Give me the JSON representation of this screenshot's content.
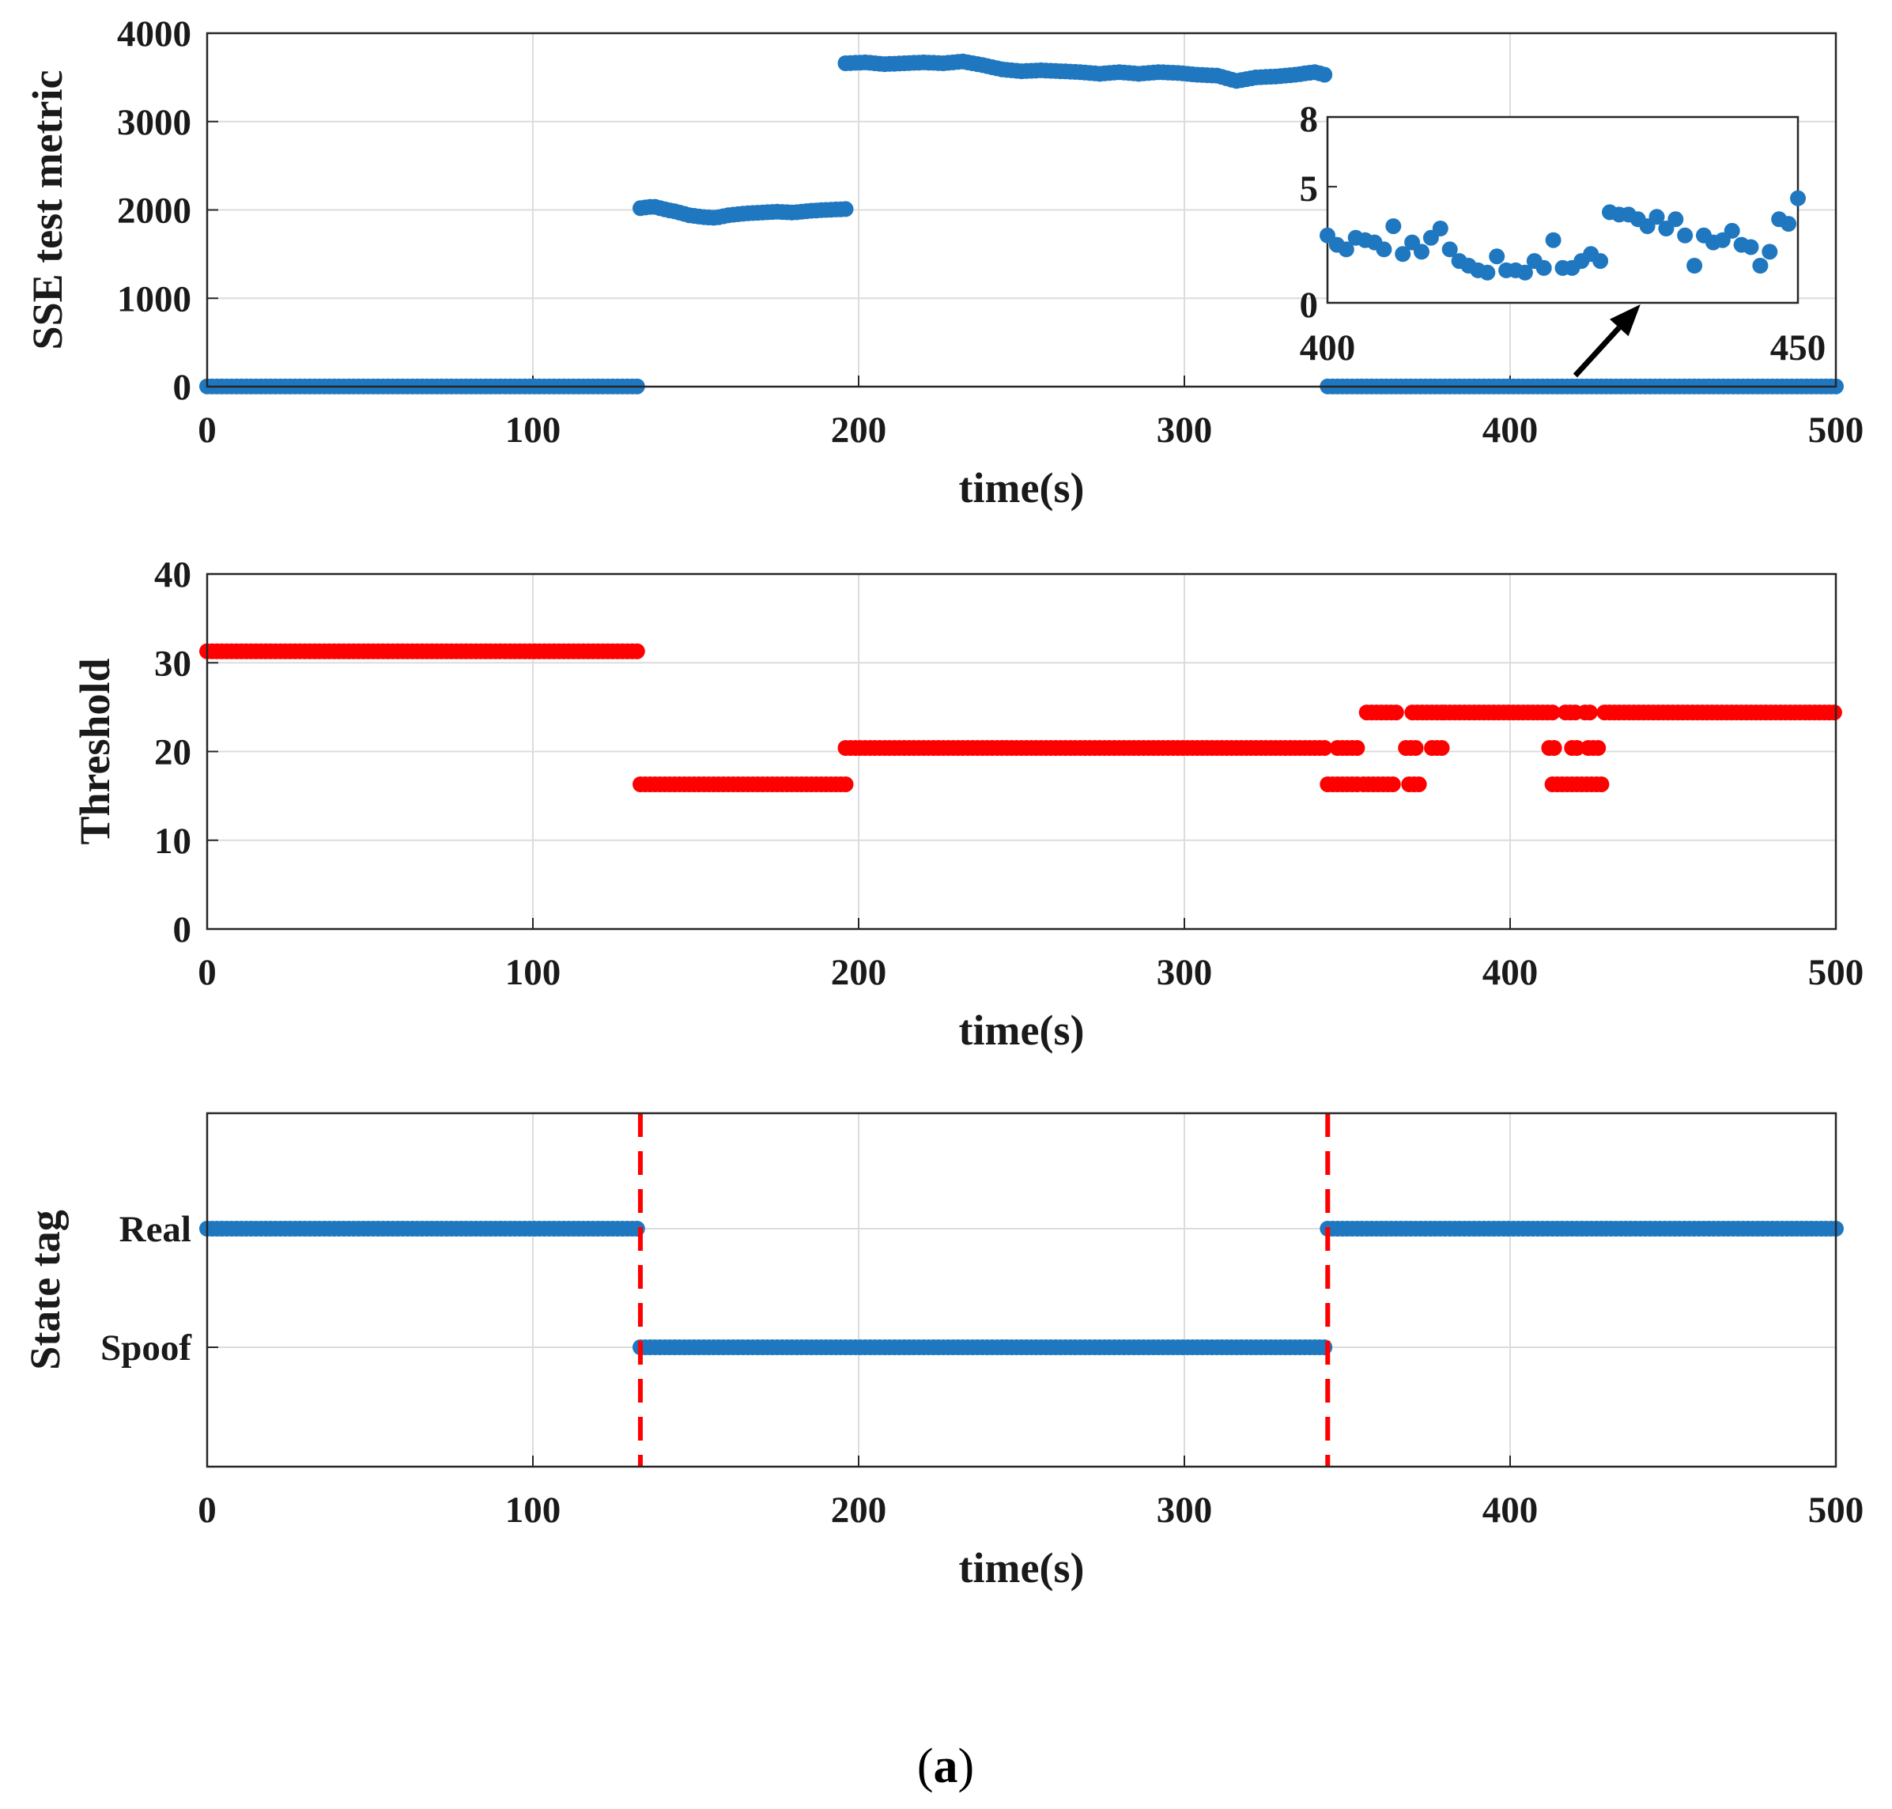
{
  "caption": {
    "open": "(",
    "letter": "a",
    "close": ")"
  },
  "colors": {
    "blue": "#1f77c0",
    "red": "#ff0000",
    "grid": "#dcdcdc",
    "axis": "#262626",
    "arrow": "#000000"
  },
  "chart_data": [
    {
      "id": "sse",
      "type": "scatter",
      "xlabel": "time(s)",
      "ylabel": "SSE test metric",
      "xlim": [
        0,
        500
      ],
      "ylim": [
        0,
        4000
      ],
      "xticks": [
        "0",
        "100",
        "200",
        "300",
        "400",
        "500"
      ],
      "yticks": [
        "0",
        "1000",
        "2000",
        "3000",
        "4000"
      ],
      "grid": true,
      "series": [
        {
          "color": "blue",
          "segments": [
            {
              "x_start": 0,
              "x_end": 133,
              "y": 3
            },
            {
              "x_start": 133,
              "x_end": 196,
              "points": [
                [
                  133,
                  2020
                ],
                [
                  137,
                  2040
                ],
                [
                  140,
                  2010
                ],
                [
                  144,
                  1980
                ],
                [
                  148,
                  1940
                ],
                [
                  152,
                  1920
                ],
                [
                  156,
                  1910
                ],
                [
                  160,
                  1940
                ],
                [
                  165,
                  1960
                ],
                [
                  170,
                  1970
                ],
                [
                  175,
                  1980
                ],
                [
                  180,
                  1970
                ],
                [
                  185,
                  1990
                ],
                [
                  190,
                  2000
                ],
                [
                  196,
                  2010
                ]
              ]
            },
            {
              "x_start": 196,
              "x_end": 344,
              "points": [
                [
                  196,
                  3660
                ],
                [
                  202,
                  3670
                ],
                [
                  208,
                  3650
                ],
                [
                  214,
                  3660
                ],
                [
                  220,
                  3670
                ],
                [
                  226,
                  3660
                ],
                [
                  232,
                  3680
                ],
                [
                  238,
                  3640
                ],
                [
                  244,
                  3590
                ],
                [
                  250,
                  3570
                ],
                [
                  256,
                  3580
                ],
                [
                  262,
                  3570
                ],
                [
                  268,
                  3560
                ],
                [
                  274,
                  3540
                ],
                [
                  280,
                  3560
                ],
                [
                  286,
                  3540
                ],
                [
                  292,
                  3560
                ],
                [
                  298,
                  3550
                ],
                [
                  304,
                  3530
                ],
                [
                  310,
                  3520
                ],
                [
                  316,
                  3460
                ],
                [
                  322,
                  3500
                ],
                [
                  328,
                  3510
                ],
                [
                  334,
                  3530
                ],
                [
                  340,
                  3560
                ],
                [
                  344,
                  3520
                ]
              ]
            },
            {
              "x_start": 344,
              "x_end": 500,
              "y": 3
            }
          ]
        }
      ],
      "inset": {
        "xlim": [
          400,
          450
        ],
        "ylim": [
          0,
          8
        ],
        "xticks": [
          "400",
          "450"
        ],
        "yticks": [
          "0",
          "5",
          "8"
        ],
        "x": [
          400,
          401,
          402,
          403,
          404,
          405,
          406,
          407,
          408,
          409,
          410,
          411,
          412,
          413,
          414,
          415,
          416,
          417,
          418,
          419,
          420,
          421,
          422,
          423,
          424,
          425,
          426,
          427,
          428,
          429,
          430,
          431,
          432,
          433,
          434,
          435,
          436,
          437,
          438,
          439,
          440,
          441,
          442,
          443,
          444,
          445,
          446,
          447,
          448,
          449,
          450
        ],
        "y": [
          2.9,
          2.5,
          2.3,
          2.8,
          2.7,
          2.6,
          2.3,
          3.3,
          2.1,
          2.6,
          2.2,
          2.8,
          3.2,
          2.3,
          1.8,
          1.6,
          1.4,
          1.3,
          2.0,
          1.4,
          1.4,
          1.3,
          1.8,
          1.5,
          2.7,
          1.5,
          1.5,
          1.8,
          2.1,
          1.8,
          3.9,
          3.8,
          3.8,
          3.6,
          3.3,
          3.7,
          3.2,
          3.6,
          2.9,
          1.6,
          2.9,
          2.6,
          2.7,
          3.1,
          2.5,
          2.4,
          1.6,
          2.2,
          3.6,
          3.4,
          4.5
        ]
      },
      "annotation": {
        "type": "arrow",
        "from": [
          420,
          0
        ],
        "to": [
          440,
          1800
        ]
      }
    },
    {
      "id": "threshold",
      "type": "scatter",
      "xlabel": "time(s)",
      "ylabel": "Threshold",
      "xlim": [
        0,
        500
      ],
      "ylim": [
        0,
        40
      ],
      "xticks": [
        "0",
        "100",
        "200",
        "300",
        "400",
        "500"
      ],
      "yticks": [
        "0",
        "10",
        "20",
        "30",
        "40"
      ],
      "grid": true,
      "series": [
        {
          "color": "red",
          "segments": [
            {
              "x_start": 0,
              "x_end": 133,
              "y": 31.3
            },
            {
              "x_start": 133,
              "x_end": 196,
              "y": 16.3
            },
            {
              "x_start": 196,
              "x_end": 344,
              "y": 20.4
            },
            {
              "x_start": 344,
              "x_end": 354,
              "y": 16.3
            },
            {
              "x_start": 347,
              "x_end": 354,
              "y": 20.4
            },
            {
              "x_start": 355,
              "x_end": 364,
              "y": 16.3
            },
            {
              "x_start": 356,
              "x_end": 366,
              "y": 24.4
            },
            {
              "x_start": 368,
              "x_end": 371,
              "y": 20.4
            },
            {
              "x_start": 369,
              "x_end": 373,
              "y": 16.3
            },
            {
              "x_start": 370,
              "x_end": 379,
              "y": 24.4
            },
            {
              "x_start": 376,
              "x_end": 380,
              "y": 20.4
            },
            {
              "x_start": 380,
              "x_end": 413,
              "y": 24.4
            },
            {
              "x_start": 412,
              "x_end": 414,
              "y": 20.4
            },
            {
              "x_start": 413,
              "x_end": 428,
              "y": 16.3
            },
            {
              "x_start": 417,
              "x_end": 420,
              "y": 24.4
            },
            {
              "x_start": 419,
              "x_end": 421,
              "y": 20.4
            },
            {
              "x_start": 423,
              "x_end": 425,
              "y": 24.4
            },
            {
              "x_start": 424,
              "x_end": 428,
              "y": 20.4
            },
            {
              "x_start": 429,
              "x_end": 500,
              "y": 24.4
            }
          ]
        }
      ]
    },
    {
      "id": "state",
      "type": "scatter",
      "xlabel": "time(s)",
      "ylabel": "State tag",
      "xlim": [
        0,
        500
      ],
      "xticks": [
        "0",
        "100",
        "200",
        "300",
        "400",
        "500"
      ],
      "yticks": [
        "Real",
        "Spoof"
      ],
      "grid": true,
      "series": [
        {
          "color": "blue",
          "segments": [
            {
              "x_start": 0,
              "x_end": 133,
              "state": "Real"
            },
            {
              "x_start": 133,
              "x_end": 344,
              "state": "Spoof"
            },
            {
              "x_start": 344,
              "x_end": 500,
              "state": "Real"
            }
          ]
        }
      ],
      "vlines": [
        {
          "x": 133,
          "color": "red",
          "style": "dashed"
        },
        {
          "x": 344,
          "color": "red",
          "style": "dashed"
        }
      ]
    }
  ]
}
